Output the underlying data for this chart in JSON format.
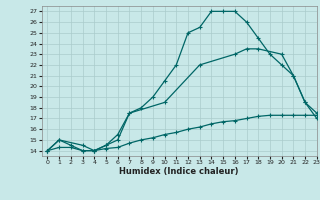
{
  "xlabel": "Humidex (Indice chaleur)",
  "bg_color": "#c8e8e8",
  "grid_color": "#aacccc",
  "line_color": "#006666",
  "xlim": [
    -0.5,
    23
  ],
  "ylim": [
    13.5,
    27.5
  ],
  "xticks": [
    0,
    1,
    2,
    3,
    4,
    5,
    6,
    7,
    8,
    9,
    10,
    11,
    12,
    13,
    14,
    15,
    16,
    17,
    18,
    19,
    20,
    21,
    22,
    23
  ],
  "yticks": [
    14,
    15,
    16,
    17,
    18,
    19,
    20,
    21,
    22,
    23,
    24,
    25,
    26,
    27
  ],
  "line1_x": [
    0,
    1,
    2,
    3,
    4,
    5,
    6,
    7,
    8,
    9,
    10,
    11,
    12,
    13,
    14,
    15,
    16,
    17,
    18,
    19,
    20,
    21,
    22,
    23
  ],
  "line1_y": [
    14,
    15,
    14.5,
    14,
    14,
    14.5,
    15,
    17.5,
    18,
    19,
    20.5,
    22,
    25,
    25.5,
    27,
    27,
    27,
    26,
    24.5,
    23,
    22,
    21,
    18.5,
    17
  ],
  "line2_x": [
    0,
    1,
    3,
    4,
    5,
    6,
    7,
    10,
    13,
    16,
    17,
    18,
    20,
    21,
    22,
    23
  ],
  "line2_y": [
    14,
    15,
    14.5,
    14,
    14.5,
    15.5,
    17.5,
    18.5,
    22,
    23,
    23.5,
    23.5,
    23,
    21,
    18.5,
    17.5
  ],
  "line3_x": [
    0,
    1,
    2,
    3,
    4,
    5,
    6,
    7,
    8,
    9,
    10,
    11,
    12,
    13,
    14,
    15,
    16,
    17,
    18,
    19,
    20,
    21,
    22,
    23
  ],
  "line3_y": [
    14,
    14.3,
    14.3,
    14,
    14,
    14.2,
    14.3,
    14.7,
    15,
    15.2,
    15.5,
    15.7,
    16,
    16.2,
    16.5,
    16.7,
    16.8,
    17,
    17.2,
    17.3,
    17.3,
    17.3,
    17.3,
    17.3
  ]
}
